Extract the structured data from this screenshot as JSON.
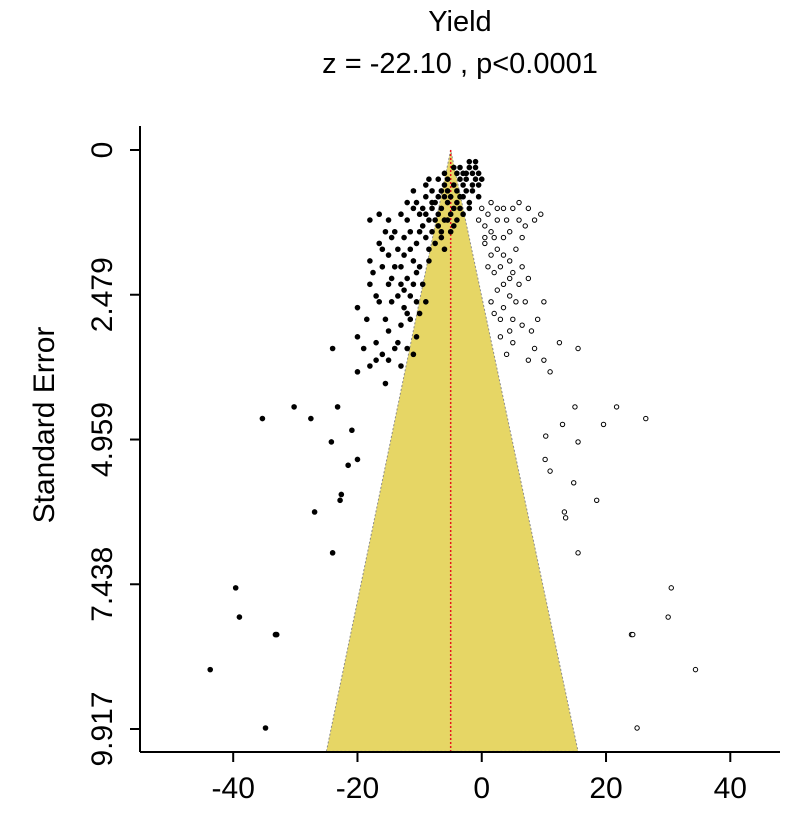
{
  "chart_data": {
    "type": "scatter",
    "subtype": "funnel",
    "title": "Yield",
    "subtitle": "z = -22.10 , p<0.0001",
    "xlabel": "",
    "ylabel": "Standard Error",
    "xlim": [
      -55,
      48
    ],
    "ylim": [
      0,
      9.917
    ],
    "y_reversed": true,
    "x_ticks": [
      -40,
      -20,
      0,
      20,
      40
    ],
    "y_ticks": [
      "0",
      "2.479",
      "4.959",
      "7.438",
      "9.917"
    ],
    "pooled_estimate": -5,
    "funnel_region": {
      "apex": [
        -5,
        0
      ],
      "base_left": -25,
      "base_right": 15.5,
      "base_se": 10.3
    },
    "colors": {
      "funnel": "#e6d665",
      "funnel_edge": "#8c8c8c",
      "estimate_line": "#e8141e",
      "points": "#000000"
    },
    "series": [
      {
        "marker": "filled",
        "points": [
          [
            -35.3,
            4.6
          ],
          [
            -30.2,
            4.4
          ],
          [
            -27.5,
            4.6
          ],
          [
            -23.2,
            4.4
          ],
          [
            -20.9,
            4.8
          ],
          [
            -26.9,
            6.2
          ],
          [
            -24.2,
            5.0
          ],
          [
            -22.6,
            5.9
          ],
          [
            -22.8,
            6.0
          ],
          [
            -21.5,
            5.4
          ],
          [
            -20.0,
            5.3
          ],
          [
            -24.0,
            6.9
          ],
          [
            -39.6,
            7.5
          ],
          [
            -39.0,
            8.0
          ],
          [
            -33.0,
            8.3
          ],
          [
            -33.2,
            8.3
          ],
          [
            -43.7,
            8.9
          ],
          [
            -34.8,
            9.9
          ],
          [
            -24.0,
            3.4
          ],
          [
            -20.0,
            3.2
          ],
          [
            -18.0,
            3.7
          ],
          [
            -19.0,
            3.4
          ],
          [
            -17.0,
            3.6
          ],
          [
            -16.0,
            3.5
          ],
          [
            -15.5,
            4.0
          ],
          [
            -20.0,
            3.8
          ],
          [
            -17.0,
            3.3
          ],
          [
            -18.5,
            2.9
          ],
          [
            -20.0,
            2.7
          ],
          [
            -17.0,
            2.5
          ],
          [
            -15.5,
            2.9
          ],
          [
            -14.5,
            2.6
          ],
          [
            -13.0,
            3.0
          ],
          [
            -13.5,
            3.3
          ],
          [
            -13.0,
            3.7
          ],
          [
            -15.0,
            3.1
          ],
          [
            -16.5,
            2.6
          ],
          [
            -18.0,
            2.3
          ],
          [
            -17.5,
            2.1
          ],
          [
            -16.0,
            2.0
          ],
          [
            -18.0,
            1.9
          ],
          [
            -16.5,
            1.6
          ],
          [
            -15.0,
            1.8
          ],
          [
            -14.0,
            2.0
          ],
          [
            -15.0,
            2.3
          ],
          [
            -12.0,
            2.2
          ],
          [
            -13.0,
            2.3
          ],
          [
            -12.5,
            2.4
          ],
          [
            -11.5,
            2.5
          ],
          [
            -10.5,
            2.6
          ],
          [
            -11.5,
            2.9
          ],
          [
            -10.0,
            2.8
          ],
          [
            -12.5,
            2.7
          ],
          [
            -13.5,
            2.5
          ],
          [
            -18.0,
            1.2
          ],
          [
            -16.5,
            1.1
          ],
          [
            -15.0,
            1.2
          ],
          [
            -14.0,
            1.4
          ],
          [
            -15.5,
            1.4
          ],
          [
            -16.0,
            1.7
          ],
          [
            -14.5,
            1.5
          ],
          [
            -13.5,
            1.7
          ],
          [
            -12.5,
            1.5
          ],
          [
            -13.0,
            1.1
          ],
          [
            -12.0,
            1.2
          ],
          [
            -11.5,
            1.4
          ],
          [
            -10.5,
            1.6
          ],
          [
            -11.0,
            1.9
          ],
          [
            -10.0,
            2.0
          ],
          [
            -9.5,
            2.3
          ],
          [
            -10.5,
            2.1
          ],
          [
            -11.5,
            1.7
          ],
          [
            -12.0,
            0.9
          ],
          [
            -11.0,
            0.7
          ],
          [
            -10.5,
            0.9
          ],
          [
            -9.5,
            1.0
          ],
          [
            -8.5,
            1.2
          ],
          [
            -9.0,
            1.5
          ],
          [
            -8.5,
            1.7
          ],
          [
            -9.5,
            1.3
          ],
          [
            -10.0,
            1.1
          ],
          [
            -9.0,
            0.6
          ],
          [
            -8.0,
            0.7
          ],
          [
            -7.5,
            0.9
          ],
          [
            -7.0,
            1.1
          ],
          [
            -8.0,
            1.4
          ],
          [
            -7.5,
            1.6
          ],
          [
            -8.5,
            1.9
          ],
          [
            -7.0,
            1.3
          ],
          [
            -6.5,
            1.5
          ],
          [
            -6.0,
            1.7
          ],
          [
            -6.5,
            1.0
          ],
          [
            -6.0,
            0.8
          ],
          [
            -5.5,
            0.9
          ],
          [
            -6.0,
            1.2
          ],
          [
            -5.0,
            1.1
          ],
          [
            -4.5,
            1.3
          ],
          [
            -5.0,
            1.4
          ],
          [
            -7.0,
            0.5
          ],
          [
            -6.0,
            0.4
          ],
          [
            -5.5,
            0.5
          ],
          [
            -4.5,
            0.6
          ],
          [
            -4.0,
            0.7
          ],
          [
            -3.5,
            0.8
          ],
          [
            -4.0,
            0.9
          ],
          [
            -3.5,
            1.0
          ],
          [
            -3.0,
            0.6
          ],
          [
            -3.0,
            0.4
          ],
          [
            -2.5,
            0.5
          ],
          [
            -2.0,
            0.3
          ],
          [
            -2.5,
            0.7
          ],
          [
            -3.0,
            1.1
          ],
          [
            -4.5,
            0.3
          ],
          [
            -3.5,
            0.3
          ],
          [
            -1.5,
            0.4
          ],
          [
            -1.0,
            0.5
          ],
          [
            -0.5,
            0.6
          ],
          [
            -1.5,
            0.7
          ],
          [
            -2.0,
            0.9
          ],
          [
            -2.0,
            0.2
          ],
          [
            -1.0,
            0.2
          ],
          [
            -0.5,
            0.4
          ],
          [
            0.0,
            0.5
          ],
          [
            -5.5,
            0.7
          ],
          [
            -8.0,
            0.9
          ],
          [
            -9.0,
            1.1
          ],
          [
            -7.5,
            1.2
          ],
          [
            -6.5,
            1.4
          ],
          [
            -5.5,
            1.2
          ],
          [
            -4.0,
            1.2
          ],
          [
            -10.0,
            1.4
          ],
          [
            -11.0,
            1.0
          ],
          [
            -12.5,
            1.8
          ],
          [
            -13.0,
            2.0
          ],
          [
            -14.5,
            2.2
          ],
          [
            -9.0,
            0.8
          ],
          [
            -8.0,
            1.0
          ],
          [
            -6.5,
            0.7
          ],
          [
            -5.0,
            0.8
          ],
          [
            -3.5,
            0.5
          ],
          [
            -2.5,
            0.4
          ],
          [
            -1.0,
            0.3
          ],
          [
            -1.5,
            0.6
          ],
          [
            -0.5,
            0.8
          ],
          [
            -2.0,
            1.0
          ],
          [
            -4.5,
            1.0
          ],
          [
            -7.0,
            0.8
          ],
          [
            -8.5,
            0.5
          ],
          [
            -4.0,
            0.4
          ],
          [
            -6.0,
            0.6
          ],
          [
            -3.0,
            0.8
          ],
          [
            -11.0,
            3.5
          ],
          [
            -12.0,
            2.8
          ],
          [
            -9.0,
            2.6
          ],
          [
            -11.0,
            2.3
          ],
          [
            -10.5,
            3.2
          ],
          [
            -15.0,
            3.6
          ],
          [
            -14.0,
            3.4
          ],
          [
            -12.0,
            3.4
          ]
        ]
      },
      {
        "marker": "open",
        "points": [
          [
            26.4,
            4.6
          ],
          [
            21.7,
            4.4
          ],
          [
            19.6,
            4.7
          ],
          [
            15.0,
            4.4
          ],
          [
            13.0,
            4.7
          ],
          [
            10.3,
            4.9
          ],
          [
            15.5,
            5.0
          ],
          [
            10.2,
            5.3
          ],
          [
            11.0,
            5.5
          ],
          [
            14.8,
            5.7
          ],
          [
            18.5,
            6.0
          ],
          [
            13.3,
            6.2
          ],
          [
            13.5,
            6.3
          ],
          [
            15.5,
            6.9
          ],
          [
            30.5,
            7.5
          ],
          [
            30.0,
            8.0
          ],
          [
            24.1,
            8.3
          ],
          [
            24.3,
            8.3
          ],
          [
            34.4,
            8.9
          ],
          [
            25.0,
            9.9
          ],
          [
            15.5,
            3.4
          ],
          [
            12.5,
            3.3
          ],
          [
            10.0,
            3.6
          ],
          [
            11.0,
            3.8
          ],
          [
            8.5,
            3.4
          ],
          [
            7.5,
            3.6
          ],
          [
            4.0,
            3.5
          ],
          [
            5.0,
            3.3
          ],
          [
            4.5,
            3.1
          ],
          [
            8.0,
            3.1
          ],
          [
            9.0,
            2.9
          ],
          [
            10.0,
            2.6
          ],
          [
            7.0,
            2.6
          ],
          [
            5.5,
            2.6
          ],
          [
            4.5,
            2.5
          ],
          [
            3.5,
            2.7
          ],
          [
            6.0,
            2.3
          ],
          [
            7.5,
            2.2
          ],
          [
            5.0,
            2.1
          ],
          [
            3.5,
            2.3
          ],
          [
            2.5,
            2.4
          ],
          [
            1.5,
            2.6
          ],
          [
            2.0,
            2.8
          ],
          [
            3.0,
            2.9
          ],
          [
            6.5,
            2.0
          ],
          [
            4.5,
            1.9
          ],
          [
            3.5,
            1.8
          ],
          [
            2.0,
            1.5
          ],
          [
            1.5,
            1.4
          ],
          [
            0.5,
            1.3
          ],
          [
            1.0,
            1.1
          ],
          [
            2.5,
            1.2
          ],
          [
            3.5,
            1.5
          ],
          [
            4.5,
            1.4
          ],
          [
            5.5,
            1.7
          ],
          [
            6.5,
            1.5
          ],
          [
            7.0,
            1.3
          ],
          [
            4.0,
            1.2
          ],
          [
            2.5,
            1.7
          ],
          [
            1.5,
            1.8
          ],
          [
            3.0,
            2.0
          ],
          [
            0.5,
            1.6
          ],
          [
            5.0,
            1.0
          ],
          [
            2.5,
            1.0
          ],
          [
            1.5,
            0.9
          ],
          [
            0.0,
            1.0
          ],
          [
            -0.5,
            1.2
          ],
          [
            0.5,
            1.5
          ],
          [
            3.5,
            1.0
          ],
          [
            4.5,
            2.2
          ],
          [
            2.0,
            2.1
          ],
          [
            5.0,
            2.9
          ],
          [
            6.0,
            1.2
          ],
          [
            8.5,
            1.2
          ],
          [
            9.5,
            1.1
          ],
          [
            7.5,
            1.0
          ],
          [
            6.0,
            0.9
          ],
          [
            3.0,
            3.2
          ],
          [
            6.5,
            3.0
          ],
          [
            1.0,
            2.0
          ]
        ]
      }
    ],
    "legend": null,
    "grid": false
  }
}
